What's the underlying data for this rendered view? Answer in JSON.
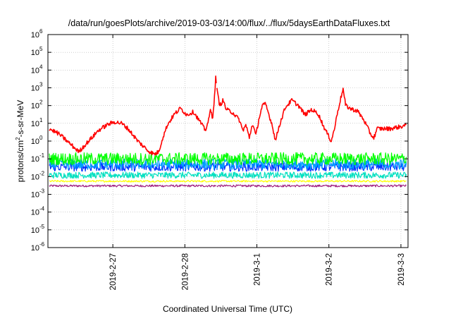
{
  "chart_data": {
    "type": "line",
    "title": "/data/run/goesPlots/archive/2019-03-03/14:00/flux/../flux/5daysEarthDataFluxes.txt",
    "xlabel": "Coordinated Universal Time (UTC)",
    "ylabel": {
      "base": "protons/cm",
      "sup": "2",
      "rest": "-s-sr-MeV"
    },
    "yscale": "log",
    "ylim_exp": [
      -6,
      6
    ],
    "y_ticks": [
      {
        "base": "10",
        "exp": "-6",
        "e": -6
      },
      {
        "base": "10",
        "exp": "-5",
        "e": -5
      },
      {
        "base": "10",
        "exp": "-4",
        "e": -4
      },
      {
        "base": "10",
        "exp": "-3",
        "e": -3
      },
      {
        "base": "10",
        "exp": "-2",
        "e": -2
      },
      {
        "base": "10",
        "exp": "-1",
        "e": -1
      },
      {
        "base": "10",
        "exp": "0",
        "e": 0
      },
      {
        "base": "10",
        "exp": "1",
        "e": 1
      },
      {
        "base": "10",
        "exp": "2",
        "e": 2
      },
      {
        "base": "10",
        "exp": "3",
        "e": 3
      },
      {
        "base": "10",
        "exp": "4",
        "e": 4
      },
      {
        "base": "10",
        "exp": "5",
        "e": 5
      },
      {
        "base": "10",
        "exp": "6",
        "e": 6
      }
    ],
    "xlim_days": [
      0,
      5.0
    ],
    "x_ticks": [
      {
        "label": "2019-2-27",
        "d": 0.97
      },
      {
        "label": "2019-2-28",
        "d": 1.97
      },
      {
        "label": "2019-3-1",
        "d": 2.97
      },
      {
        "label": "2019-3-2",
        "d": 3.97
      },
      {
        "label": "2019-3-3",
        "d": 4.97
      }
    ],
    "grid": true,
    "data_gap_day": 2.55,
    "series": [
      {
        "color": "#ff0000",
        "noise": 0.12,
        "points": [
          [
            0.0,
            5.0
          ],
          [
            0.15,
            2.5
          ],
          [
            0.3,
            0.8
          ],
          [
            0.45,
            0.25
          ],
          [
            0.6,
            1.0
          ],
          [
            0.75,
            4.0
          ],
          [
            0.9,
            9.0
          ],
          [
            1.0,
            12
          ],
          [
            1.1,
            10
          ],
          [
            1.2,
            5.0
          ],
          [
            1.35,
            1.0
          ],
          [
            1.5,
            0.3
          ],
          [
            1.6,
            0.18
          ],
          [
            1.67,
            0.25
          ],
          [
            1.72,
            1.2
          ],
          [
            1.8,
            8.0
          ],
          [
            1.9,
            30
          ],
          [
            2.0,
            70
          ],
          [
            2.1,
            30
          ],
          [
            2.2,
            45
          ],
          [
            2.3,
            12
          ],
          [
            2.38,
            4.0
          ],
          [
            2.43,
            15
          ],
          [
            2.46,
            60
          ],
          [
            2.49,
            20
          ],
          [
            2.52,
            300
          ],
          [
            2.54,
            5000
          ],
          [
            2.56,
            600
          ],
          [
            2.6,
            100
          ],
          [
            2.65,
            200
          ],
          [
            2.7,
            60
          ],
          [
            2.8,
            40
          ],
          [
            2.9,
            15
          ],
          [
            2.95,
            4.0
          ],
          [
            3.0,
            8.0
          ],
          [
            3.05,
            1.5
          ],
          [
            3.1,
            10
          ],
          [
            3.15,
            2.0
          ],
          [
            3.2,
            20
          ],
          [
            3.25,
            100
          ],
          [
            3.3,
            120
          ],
          [
            3.35,
            30
          ],
          [
            3.4,
            8.0
          ],
          [
            3.45,
            1.0
          ],
          [
            3.5,
            6.0
          ],
          [
            3.6,
            80
          ],
          [
            3.7,
            200
          ],
          [
            3.8,
            100
          ],
          [
            3.9,
            30
          ],
          [
            4.0,
            60
          ],
          [
            4.1,
            35
          ],
          [
            4.2,
            5.0
          ],
          [
            4.3,
            1.0
          ],
          [
            4.35,
            5.0
          ],
          [
            4.4,
            50
          ],
          [
            4.48,
            900
          ],
          [
            4.52,
            100
          ],
          [
            4.6,
            65
          ],
          [
            4.7,
            50
          ],
          [
            4.8,
            15
          ],
          [
            4.9,
            2.5
          ],
          [
            4.95,
            1.5
          ],
          [
            5.0,
            5.0
          ],
          [
            5.2,
            5.0
          ],
          [
            5.4,
            7.0
          ],
          [
            5.45,
            8.0
          ]
        ]
      },
      {
        "color": "#00ff00",
        "noise": 0.35,
        "points": [
          [
            0.0,
            0.1
          ],
          [
            5.45,
            0.1
          ]
        ]
      },
      {
        "color": "#00a0ff",
        "noise": 0.3,
        "points": [
          [
            0.0,
            0.05
          ],
          [
            5.45,
            0.05
          ]
        ]
      },
      {
        "color": "#0030ff",
        "noise": 0.25,
        "points": [
          [
            0.0,
            0.035
          ],
          [
            5.45,
            0.035
          ]
        ]
      },
      {
        "color": "#00e0c0",
        "noise": 0.18,
        "points": [
          [
            0.0,
            0.012
          ],
          [
            5.45,
            0.012
          ]
        ]
      },
      {
        "color": "#ffff00",
        "noise": 0.05,
        "points": [
          [
            0.0,
            0.0055
          ],
          [
            5.45,
            0.0055
          ]
        ]
      },
      {
        "color": "#a02080",
        "noise": 0.06,
        "points": [
          [
            0.0,
            0.003
          ],
          [
            5.45,
            0.003
          ]
        ]
      }
    ]
  }
}
